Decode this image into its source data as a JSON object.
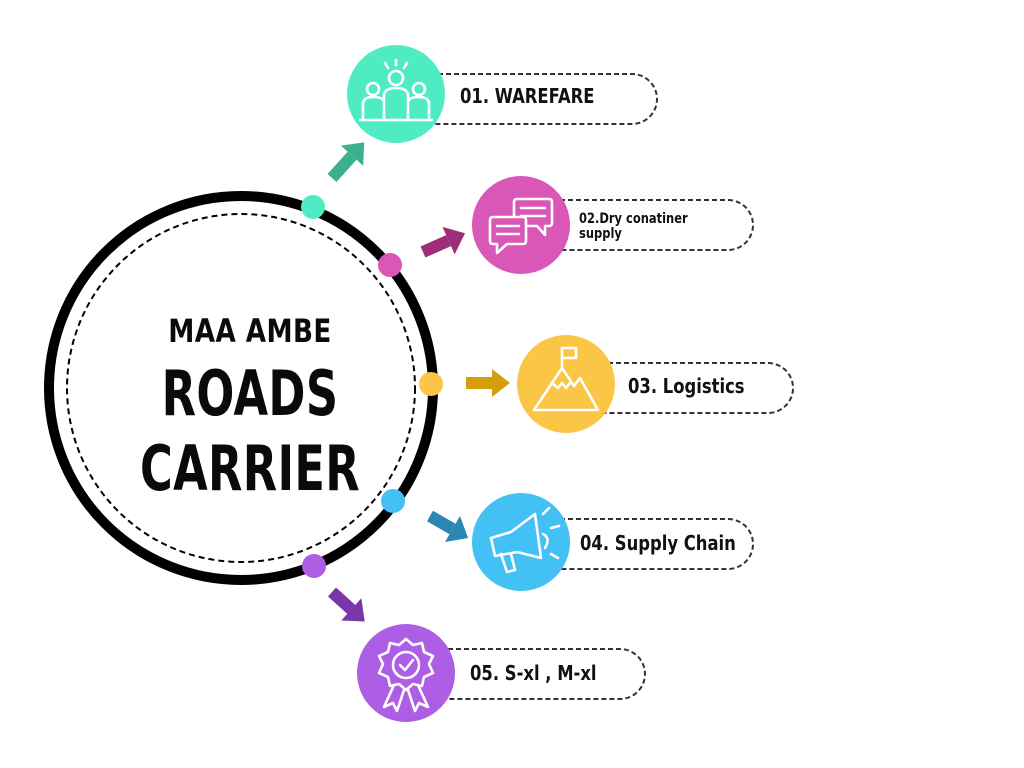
{
  "title": {
    "line1": "MAA AMBE",
    "line2": "ROADS",
    "line3": "CARRIER"
  },
  "items": [
    {
      "label": "01. WAREFARE",
      "color": "#4fecc4",
      "icon": "people-group-icon"
    },
    {
      "label_line1": "02.Dry conatiner",
      "label_line2": "supply",
      "color": "#d957b6",
      "icon": "chat-bubbles-icon"
    },
    {
      "label": "03. Logistics",
      "color": "#fbc646",
      "icon": "mountain-flag-icon"
    },
    {
      "label": "04. Supply Chain",
      "color": "#43c1f5",
      "icon": "megaphone-icon"
    },
    {
      "label": "05. S-xl , M-xl",
      "color": "#ad5ee4",
      "icon": "award-badge-icon"
    }
  ],
  "colors": {
    "ring": "#000000",
    "arrow1": "#3bb08f",
    "arrow2": "#9e2d7a",
    "arrow3": "#d69e0b",
    "arrow4": "#2a87b3",
    "arrow5": "#7a36a6"
  }
}
